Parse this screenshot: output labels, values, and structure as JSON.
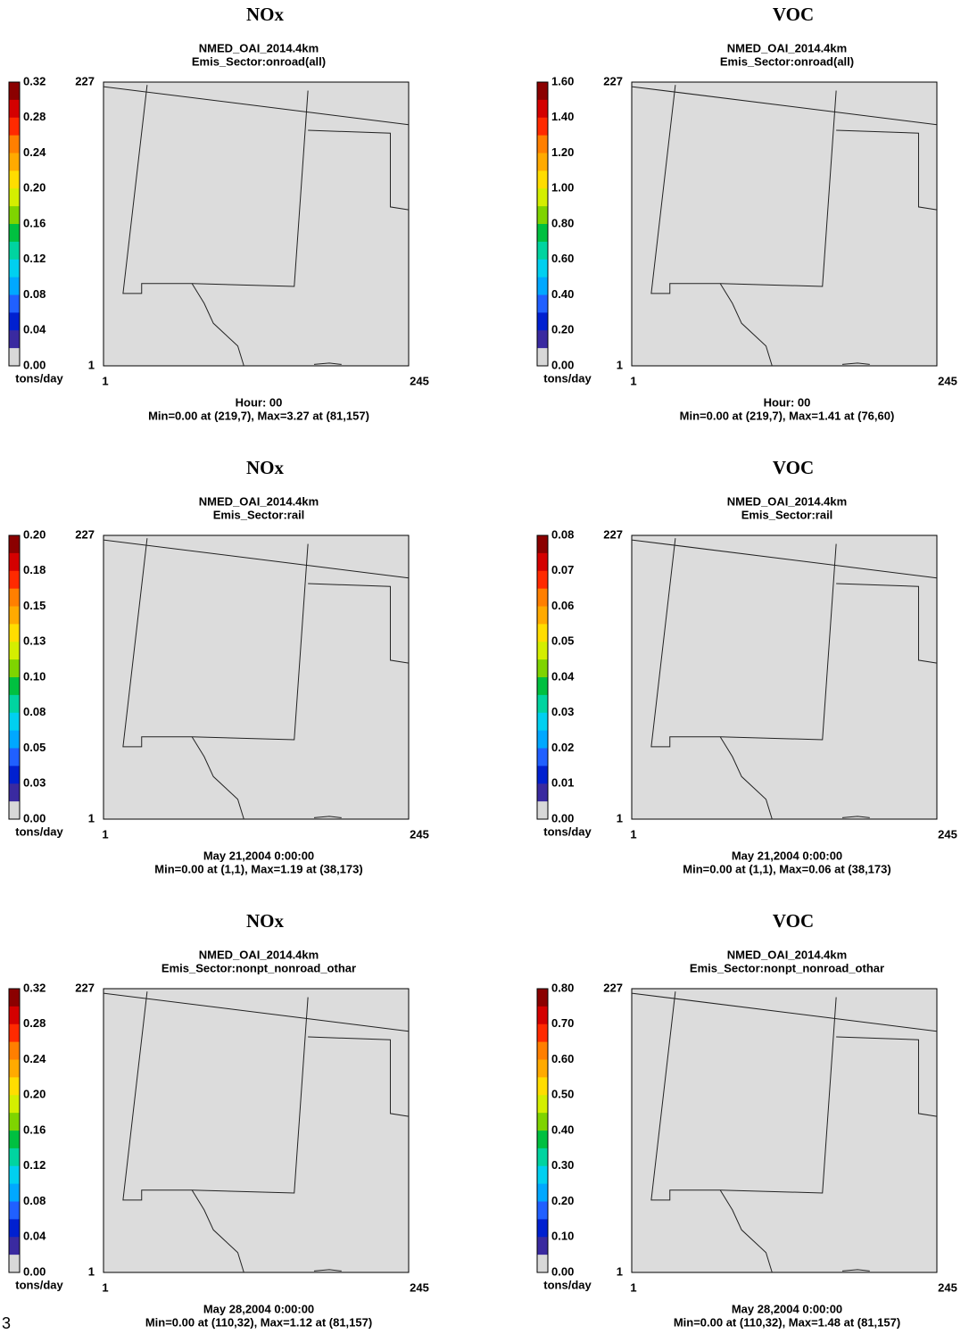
{
  "page_number": "3",
  "panels": [
    {
      "title": "NOx",
      "dataset": "NMED_OAI_2014.4km",
      "sector": "Emis_Sector:onroad(all)",
      "colorbar_ticks": [
        "0.32",
        "0.28",
        "0.24",
        "0.20",
        "0.16",
        "0.12",
        "0.08",
        "0.04",
        "0.00"
      ],
      "unit": "tons/day",
      "y_axis": [
        "227",
        "1"
      ],
      "x_axis": [
        "1",
        "245"
      ],
      "time": "Hour: 00",
      "stats": "Min=0.00 at (219,7), Max=3.27 at (81,157)"
    },
    {
      "title": "VOC",
      "dataset": "NMED_OAI_2014.4km",
      "sector": "Emis_Sector:onroad(all)",
      "colorbar_ticks": [
        "1.60",
        "1.40",
        "1.20",
        "1.00",
        "0.80",
        "0.60",
        "0.40",
        "0.20",
        "0.00"
      ],
      "unit": "tons/day",
      "y_axis": [
        "227",
        "1"
      ],
      "x_axis": [
        "1",
        "245"
      ],
      "time": "Hour: 00",
      "stats": "Min=0.00 at (219,7), Max=1.41 at (76,60)"
    },
    {
      "title": "NOx",
      "dataset": "NMED_OAI_2014.4km",
      "sector": "Emis_Sector:rail",
      "colorbar_ticks": [
        "0.20",
        "0.18",
        "0.15",
        "0.13",
        "0.10",
        "0.08",
        "0.05",
        "0.03",
        "0.00"
      ],
      "unit": "tons/day",
      "y_axis": [
        "227",
        "1"
      ],
      "x_axis": [
        "1",
        "245"
      ],
      "time": "May 21,2004 0:00:00",
      "stats": "Min=0.00 at (1,1), Max=1.19 at (38,173)"
    },
    {
      "title": "VOC",
      "dataset": "NMED_OAI_2014.4km",
      "sector": "Emis_Sector:rail",
      "colorbar_ticks": [
        "0.08",
        "0.07",
        "0.06",
        "0.05",
        "0.04",
        "0.03",
        "0.02",
        "0.01",
        "0.00"
      ],
      "unit": "tons/day",
      "y_axis": [
        "227",
        "1"
      ],
      "x_axis": [
        "1",
        "245"
      ],
      "time": "May 21,2004 0:00:00",
      "stats": "Min=0.00 at (1,1), Max=0.06 at (38,173)"
    },
    {
      "title": "NOx",
      "dataset": "NMED_OAI_2014.4km",
      "sector": "Emis_Sector:nonpt_nonroad_othar",
      "colorbar_ticks": [
        "0.32",
        "0.28",
        "0.24",
        "0.20",
        "0.16",
        "0.12",
        "0.08",
        "0.04",
        "0.00"
      ],
      "unit": "tons/day",
      "y_axis": [
        "227",
        "1"
      ],
      "x_axis": [
        "1",
        "245"
      ],
      "time": "May 28,2004 0:00:00",
      "stats": "Min=0.00 at (110,32), Max=1.12 at (81,157)"
    },
    {
      "title": "VOC",
      "dataset": "NMED_OAI_2014.4km",
      "sector": "Emis_Sector:nonpt_nonroad_othar",
      "colorbar_ticks": [
        "0.80",
        "0.70",
        "0.60",
        "0.50",
        "0.40",
        "0.30",
        "0.20",
        "0.10",
        "0.00"
      ],
      "unit": "tons/day",
      "y_axis": [
        "227",
        "1"
      ],
      "x_axis": [
        "1",
        "245"
      ],
      "time": "May 28,2004 0:00:00",
      "stats": "Min=0.00 at (110,32), Max=1.48 at (81,157)"
    }
  ]
}
